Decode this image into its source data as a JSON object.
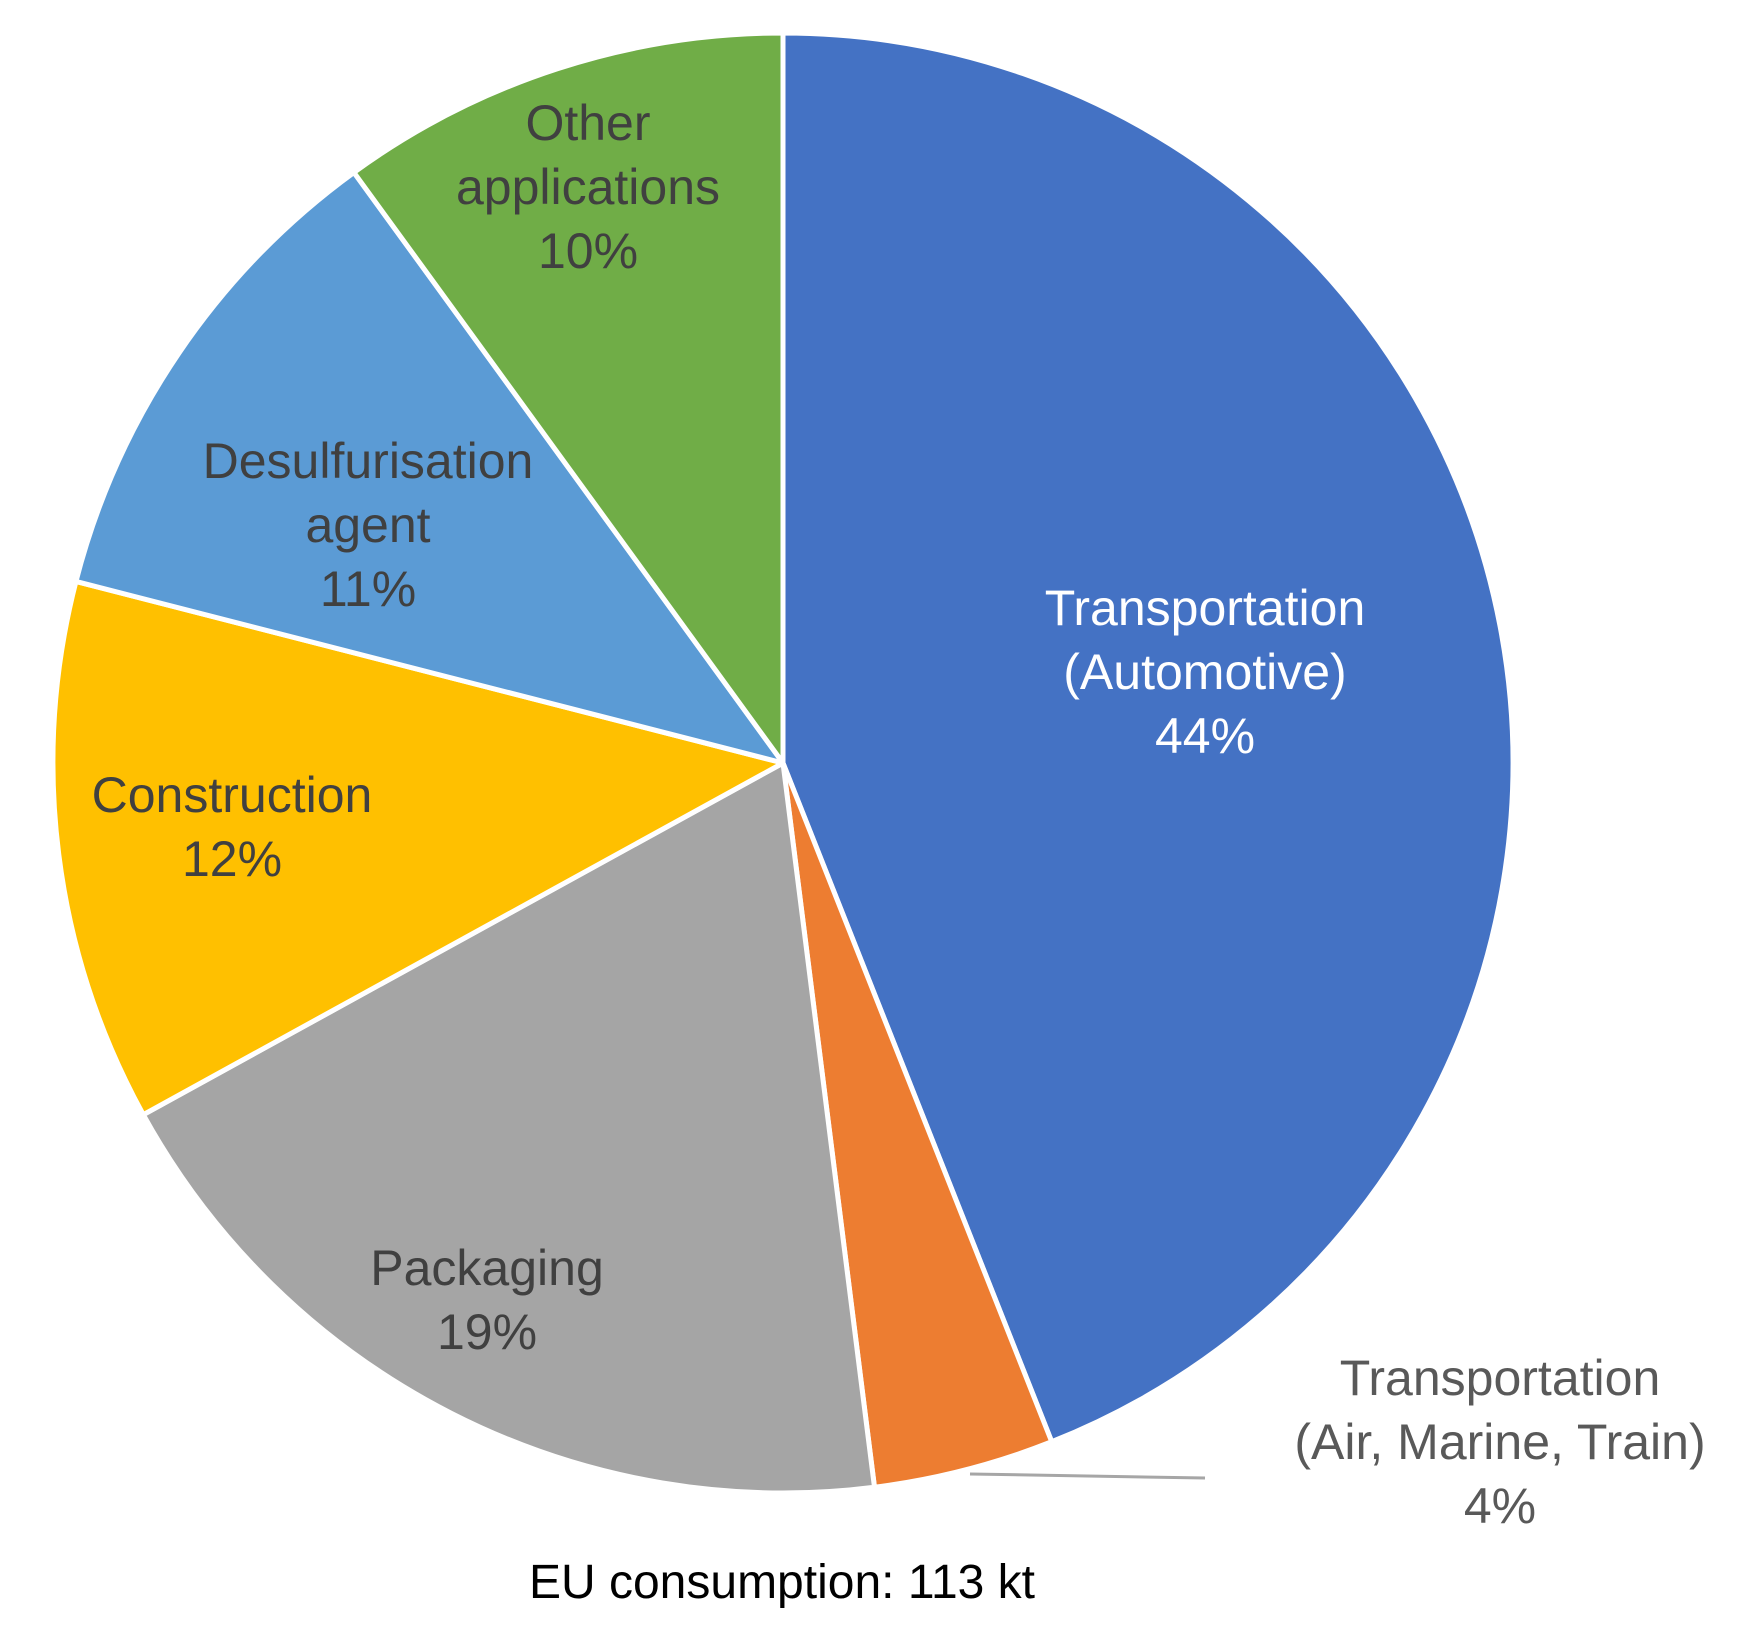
{
  "chart_data": {
    "type": "pie",
    "start": "top, clockwise",
    "caption": "EU consumption: 113 kt",
    "slices": [
      {
        "label": [
          "Transportation",
          "(Automotive)"
        ],
        "value": 44,
        "value_label": "44%",
        "color": "#4472C4",
        "label_color": "#FFFFFF"
      },
      {
        "label": [
          "Transportation",
          "(Air, Marine, Train)"
        ],
        "value": 4,
        "value_label": "4%",
        "color": "#ED7D31",
        "label_color": "#595959"
      },
      {
        "label": [
          "Packaging"
        ],
        "value": 19,
        "value_label": "19%",
        "color": "#A5A5A5",
        "label_color": "#404040"
      },
      {
        "label": [
          "Construction"
        ],
        "value": 12,
        "value_label": "12%",
        "color": "#FFC000",
        "label_color": "#404040"
      },
      {
        "label": [
          "Desulfurisation",
          "agent"
        ],
        "value": 11,
        "value_label": "11%",
        "color": "#5B9BD5",
        "label_color": "#404040"
      },
      {
        "label": [
          "Other",
          "applications"
        ],
        "value": 10,
        "value_label": "10%",
        "color": "#70AD47",
        "label_color": "#404040"
      }
    ]
  }
}
